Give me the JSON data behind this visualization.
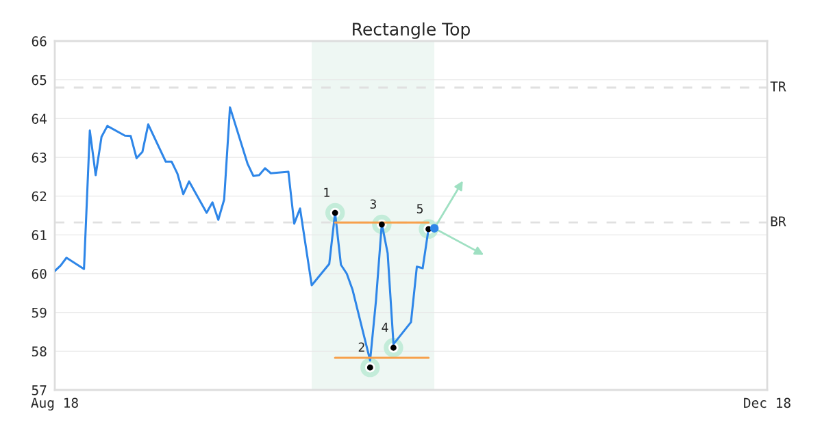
{
  "chart_data": {
    "type": "line",
    "title": "Rectangle Top",
    "xlim": [
      "2018-08-01",
      "2018-12-01"
    ],
    "xticks": [
      {
        "value": "2018-08-01",
        "label": "Aug 18"
      },
      {
        "value": "2018-12-01",
        "label": "Dec 18"
      }
    ],
    "ylim": [
      57,
      66
    ],
    "yticks": [
      57,
      58,
      59,
      60,
      61,
      62,
      63,
      64,
      65,
      66
    ],
    "grid": "y",
    "series": [
      {
        "color": "#2e86e8",
        "x": [
          "2018-08-01",
          "2018-08-02",
          "2018-08-03",
          "2018-08-06",
          "2018-08-07",
          "2018-08-08",
          "2018-08-09",
          "2018-08-10",
          "2018-08-13",
          "2018-08-14",
          "2018-08-15",
          "2018-08-16",
          "2018-08-17",
          "2018-08-20",
          "2018-08-21",
          "2018-08-22",
          "2018-08-23",
          "2018-08-24",
          "2018-08-27",
          "2018-08-28",
          "2018-08-29",
          "2018-08-30",
          "2018-08-31",
          "2018-09-03",
          "2018-09-04",
          "2018-09-05",
          "2018-09-06",
          "2018-09-07",
          "2018-09-10",
          "2018-09-11",
          "2018-09-12",
          "2018-09-13",
          "2018-09-14",
          "2018-09-17",
          "2018-09-18",
          "2018-09-19",
          "2018-09-20",
          "2018-09-21",
          "2018-09-24",
          "2018-09-25",
          "2018-09-26",
          "2018-09-27",
          "2018-09-28",
          "2018-10-01",
          "2018-10-02",
          "2018-10-03",
          "2018-10-04"
        ],
        "values": [
          60.07,
          60.21,
          60.41,
          60.12,
          63.69,
          62.54,
          63.53,
          63.81,
          63.56,
          63.55,
          62.98,
          63.14,
          63.85,
          62.89,
          62.89,
          62.58,
          62.05,
          62.38,
          61.57,
          61.84,
          61.39,
          61.91,
          64.29,
          62.84,
          62.52,
          62.54,
          62.72,
          62.59,
          62.63,
          61.29,
          61.68,
          60.69,
          59.7,
          60.25,
          61.57,
          60.23,
          60.0,
          59.58,
          57.76,
          59.3,
          61.29,
          60.53,
          58.18,
          58.75,
          60.18,
          60.14,
          61.15
        ]
      },
      {
        "color": "#f7a04b",
        "x": [
          "2018-09-18",
          "2018-10-04"
        ],
        "values": [
          61.32,
          61.32
        ]
      },
      {
        "color": "#f7a04b",
        "x": [
          "2018-09-18",
          "2018-10-04"
        ],
        "values": [
          57.83,
          57.83
        ]
      },
      {
        "type": "scatter",
        "color": "#000000",
        "x": [
          "2018-09-18",
          "2018-09-24",
          "2018-09-26",
          "2018-09-28",
          "2018-10-04"
        ],
        "values": [
          61.57,
          57.58,
          61.27,
          58.09,
          61.15
        ]
      },
      {
        "type": "scatter",
        "color": "#2e86e8",
        "x": [
          "2018-10-05"
        ],
        "values": [
          61.17
        ]
      }
    ],
    "annotations": [
      {
        "text": "1",
        "x": "2018-09-18",
        "y": 61.57
      },
      {
        "text": "2",
        "x": "2018-09-24",
        "y": 57.58
      },
      {
        "text": "3",
        "x": "2018-09-26",
        "y": 61.27
      },
      {
        "text": "4",
        "x": "2018-09-28",
        "y": 58.09
      },
      {
        "text": "5",
        "x": "2018-10-04",
        "y": 61.15
      }
    ],
    "ref_lines": [
      {
        "axis": "y",
        "value": 64.8,
        "label": "TR",
        "color": "#e0e0e0",
        "line_style": "dashed"
      },
      {
        "axis": "y",
        "value": 61.32,
        "label": "BR",
        "color": "#e0e0e0",
        "line_style": "dashed"
      }
    ],
    "bands": [
      {
        "axis": "x",
        "from": "2018-09-14",
        "to": "2018-10-05",
        "color": "#eef7f3"
      }
    ]
  }
}
